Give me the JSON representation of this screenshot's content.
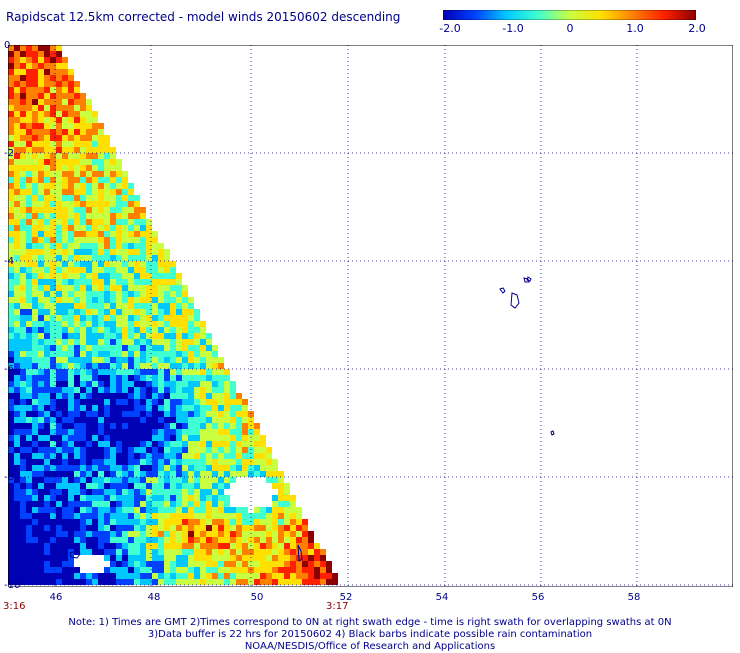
{
  "title": "Rapidscat 12.5km corrected - model winds 20150602 descending",
  "colorbar": {
    "ticks": [
      "-2.0",
      "-1.0",
      "0",
      "1.0",
      "2.0"
    ],
    "range": [
      -2.0,
      2.0
    ],
    "colors": [
      "#0000b4",
      "#0040ff",
      "#00c8ff",
      "#40ffd0",
      "#c8ff40",
      "#ffe000",
      "#ff8000",
      "#ff2000",
      "#8b0000"
    ]
  },
  "axes": {
    "x_ticks": [
      "46",
      "48",
      "50",
      "52",
      "54",
      "56",
      "58"
    ],
    "y_ticks": [
      "0",
      "-2",
      "-4",
      "-6",
      "-8",
      "-10"
    ],
    "x_range": [
      45.2,
      59.5
    ],
    "y_range": [
      -10,
      0
    ],
    "grid": true
  },
  "time_labels": {
    "left": "3:16",
    "right": "3:17"
  },
  "notes": [
    "Note: 1) Times are GMT 2)Times correspond to 0N at right swath edge - time is right swath for overlapping swaths at 0N",
    "3)Data buffer is 22 hrs for 20150602 4) Black barbs indicate possible rain contamination",
    "NOAA/NESDIS/Office of Research and Applications"
  ],
  "land_features": [
    "seychelles-islands",
    "small-island"
  ]
}
